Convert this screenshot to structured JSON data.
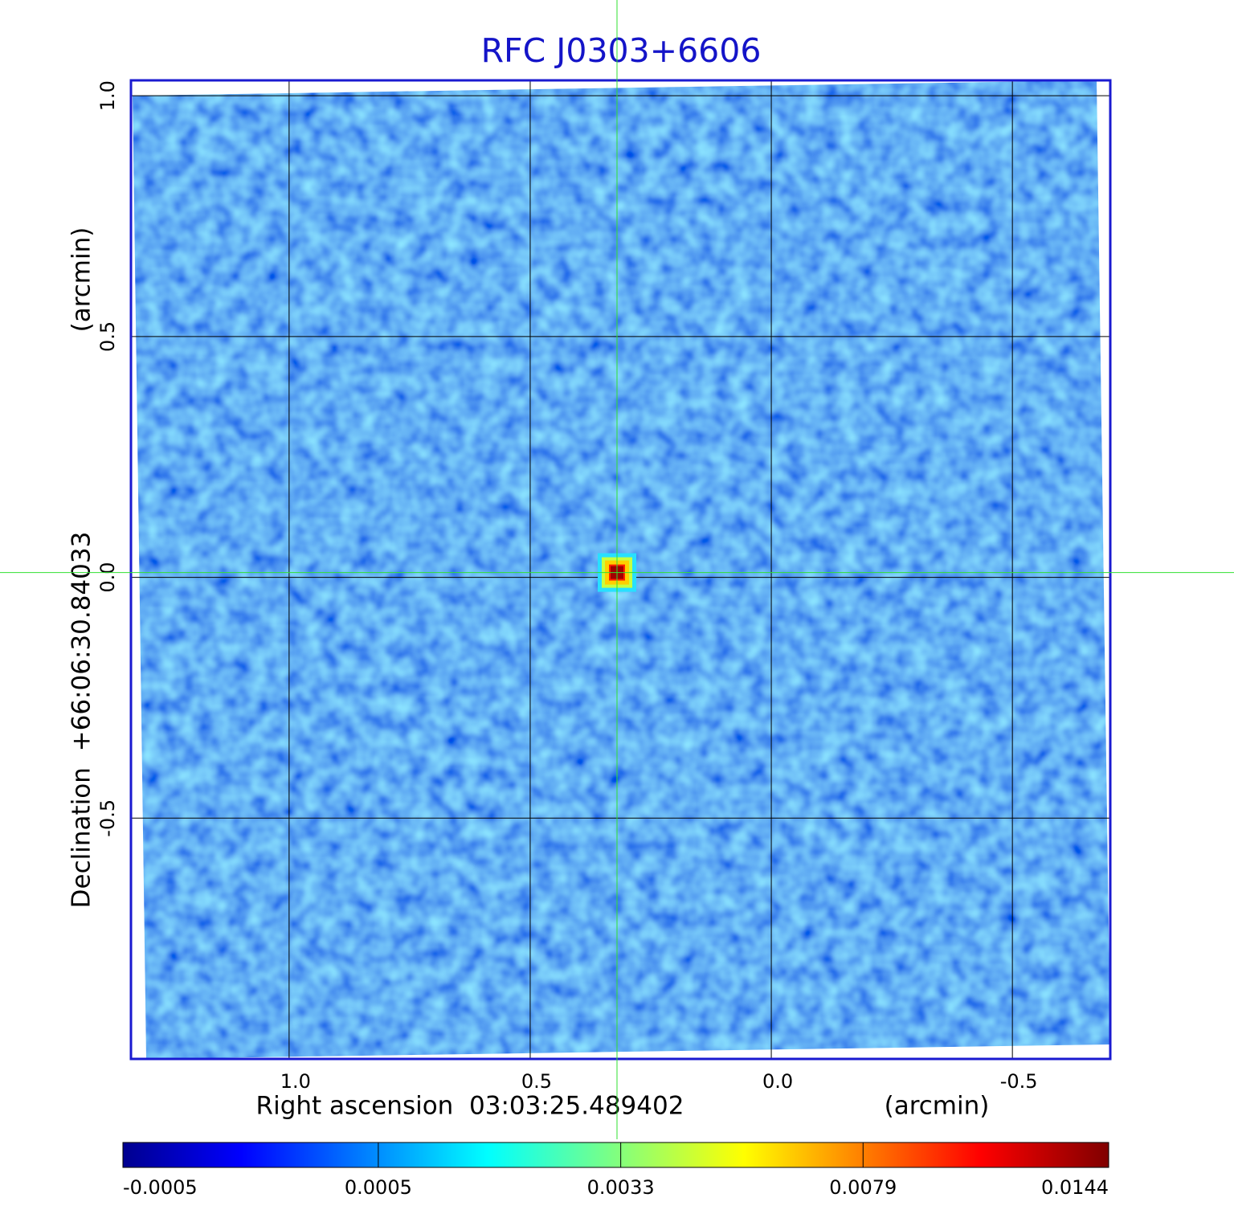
{
  "chart_data": {
    "type": "image",
    "title": "RFC J0303+6606",
    "x_label": "Right ascension  03:03:25.489402",
    "x_unit": "(arcmin)",
    "y_label": "Declination  +66:06:30.84033",
    "y_unit": "(arcmin)",
    "xlim": [
      1.328,
      -0.703
    ],
    "ylim": [
      -1.0,
      1.032
    ],
    "xticks": [
      {
        "value": 1,
        "label": "1.0"
      },
      0.5,
      {
        "value": 0,
        "label": "0.0"
      },
      -0.5
    ],
    "yticks": [
      {
        "value": 1,
        "label": "1.0"
      },
      0.5,
      {
        "value": 0,
        "label": "0.0"
      },
      -0.5
    ],
    "grid": true,
    "colorbar_lim": [
      -0.0005,
      0.0144
    ],
    "colorbar_scale": "sqrt",
    "colorbar_ticks": [
      -0.0005,
      0.0005,
      0.0033,
      0.0079,
      0.0144
    ],
    "source": {
      "x": 0.32,
      "y": 0.01,
      "value": 0.0144
    }
  }
}
